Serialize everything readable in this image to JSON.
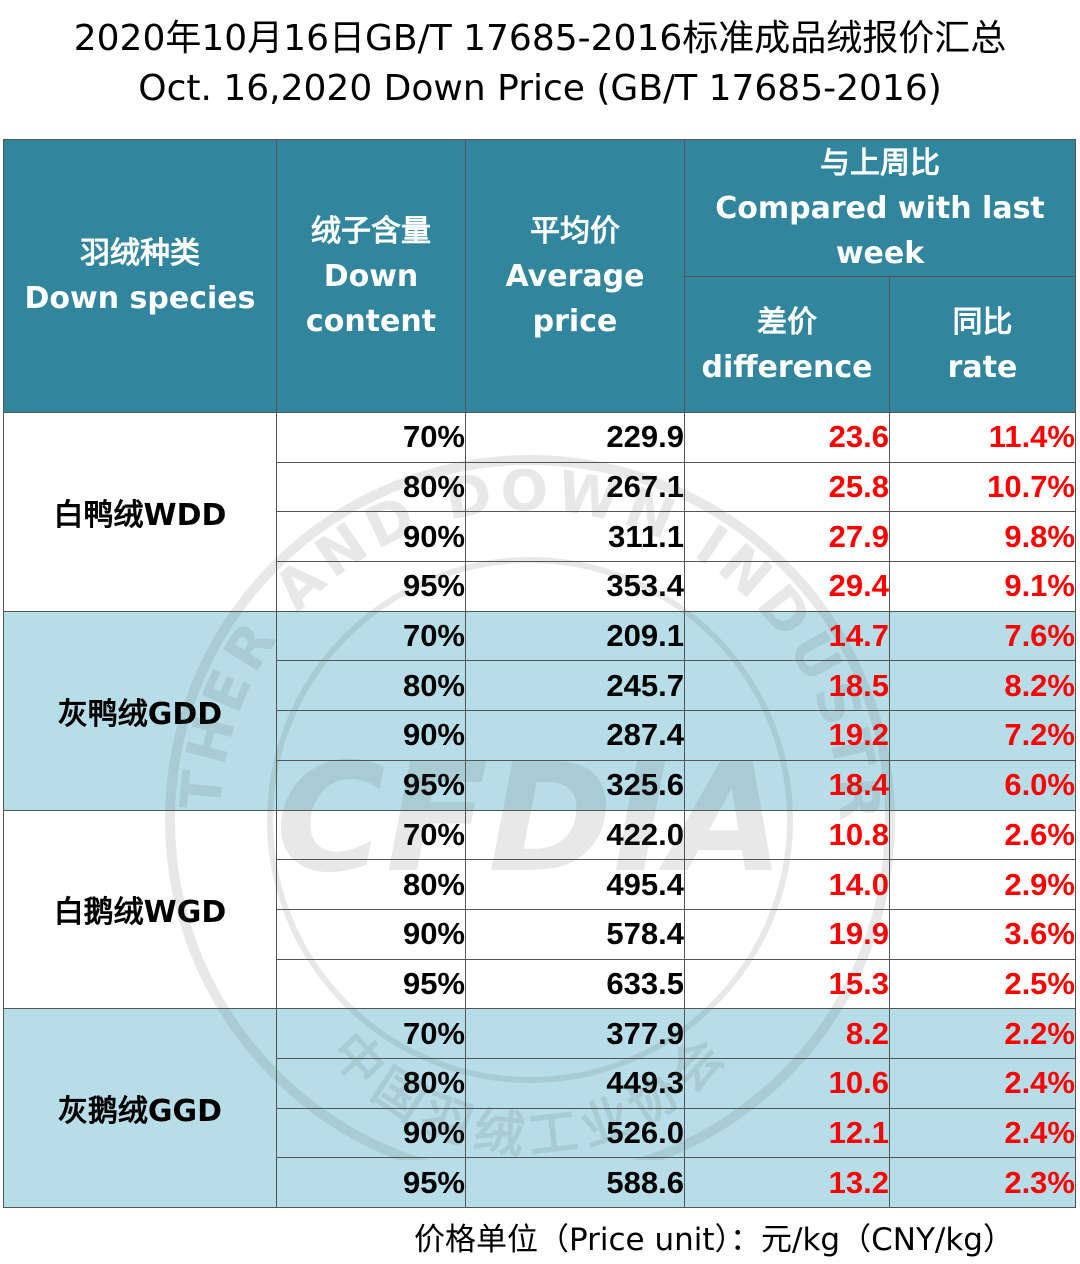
{
  "title": {
    "line1": "2020年10月16日GB/T 17685-2016标准成品绒报价汇总",
    "line2": "Oct. 16,2020 Down Price (GB/T 17685-2016)"
  },
  "header": {
    "species": [
      "羽绒种类",
      "Down species"
    ],
    "content": [
      "绒子含量",
      "Down",
      "content"
    ],
    "avg": [
      "平均价",
      "Average",
      "price"
    ],
    "compare": [
      "与上周比",
      "Compared with last",
      "week"
    ],
    "diff": [
      "差价",
      "difference"
    ],
    "rate": [
      "同比",
      "rate"
    ]
  },
  "groups": [
    {
      "species": "白鸭绒WDD",
      "rows": [
        {
          "content": "70%",
          "avg": "229.9",
          "diff": "23.6",
          "rate": "11.4%"
        },
        {
          "content": "80%",
          "avg": "267.1",
          "diff": "25.8",
          "rate": "10.7%"
        },
        {
          "content": "90%",
          "avg": "311.1",
          "diff": "27.9",
          "rate": "9.8%"
        },
        {
          "content": "95%",
          "avg": "353.4",
          "diff": "29.4",
          "rate": "9.1%"
        }
      ]
    },
    {
      "species": "灰鸭绒GDD",
      "rows": [
        {
          "content": "70%",
          "avg": "209.1",
          "diff": "14.7",
          "rate": "7.6%"
        },
        {
          "content": "80%",
          "avg": "245.7",
          "diff": "18.5",
          "rate": "8.2%"
        },
        {
          "content": "90%",
          "avg": "287.4",
          "diff": "19.2",
          "rate": "7.2%"
        },
        {
          "content": "95%",
          "avg": "325.6",
          "diff": "18.4",
          "rate": "6.0%"
        }
      ]
    },
    {
      "species": "白鹅绒WGD",
      "rows": [
        {
          "content": "70%",
          "avg": "422.0",
          "diff": "10.8",
          "rate": "2.6%"
        },
        {
          "content": "80%",
          "avg": "495.4",
          "diff": "14.0",
          "rate": "2.9%"
        },
        {
          "content": "90%",
          "avg": "578.4",
          "diff": "19.9",
          "rate": "3.6%"
        },
        {
          "content": "95%",
          "avg": "633.5",
          "diff": "15.3",
          "rate": "2.5%"
        }
      ]
    },
    {
      "species": "灰鹅绒GGD",
      "rows": [
        {
          "content": "70%",
          "avg": "377.9",
          "diff": "8.2",
          "rate": "2.2%"
        },
        {
          "content": "80%",
          "avg": "449.3",
          "diff": "10.6",
          "rate": "2.4%"
        },
        {
          "content": "90%",
          "avg": "526.0",
          "diff": "12.1",
          "rate": "2.4%"
        },
        {
          "content": "95%",
          "avg": "588.6",
          "diff": "13.2",
          "rate": "2.3%"
        }
      ]
    }
  ],
  "footer": "价格单位（Price unit）：元/kg（CNY/kg）",
  "watermark": {
    "text_top": "FEATHER AND DOWN INDUSTRIAL",
    "text_bottom": "中国羽绒工业协会",
    "logo": "CFDIA"
  },
  "colors": {
    "header_bg": "#31859c",
    "band_bg": "#b7dee8",
    "accent_red": "#ff0000"
  }
}
